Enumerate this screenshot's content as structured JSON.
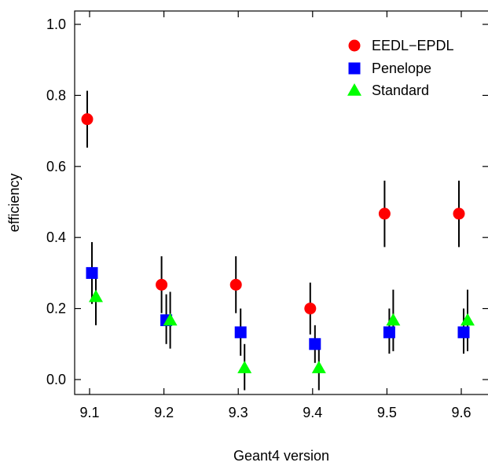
{
  "chart_data": {
    "type": "scatter",
    "title": "",
    "xlabel": "Geant4 version",
    "ylabel": "efficiency",
    "categories": [
      "9.1",
      "9.2",
      "9.3",
      "9.4",
      "9.5",
      "9.6"
    ],
    "ylim": [
      -0.03,
      1.04
    ],
    "yticks": [
      0.0,
      0.2,
      0.4,
      0.6,
      0.8,
      1.0
    ],
    "ytick_labels": [
      "0.0",
      "0.2",
      "0.4",
      "0.6",
      "0.8",
      "1.0"
    ],
    "grid": false,
    "legend_position": "top-right",
    "series": [
      {
        "name": "EEDL−EPDL",
        "marker": "circle",
        "color": "#ff0000",
        "values": [
          0.733,
          0.267,
          0.267,
          0.2,
          0.467,
          0.467
        ],
        "err_low": [
          0.653,
          0.187,
          0.187,
          0.127,
          0.373,
          0.373
        ],
        "err_high": [
          0.813,
          0.347,
          0.347,
          0.273,
          0.56,
          0.56
        ]
      },
      {
        "name": "Penelope",
        "marker": "square",
        "color": "#0000ff",
        "values": [
          0.3,
          0.167,
          0.133,
          0.1,
          0.133,
          0.133
        ],
        "err_low": [
          0.213,
          0.1,
          0.067,
          0.047,
          0.073,
          0.073
        ],
        "err_high": [
          0.387,
          0.24,
          0.2,
          0.153,
          0.2,
          0.2
        ]
      },
      {
        "name": "Standard",
        "marker": "triangle",
        "color": "#00ff00",
        "values": [
          0.233,
          0.167,
          0.033,
          0.033,
          0.167,
          0.167
        ],
        "err_low": [
          0.153,
          0.087,
          -0.03,
          -0.03,
          0.08,
          0.08
        ],
        "err_high": [
          0.313,
          0.247,
          0.1,
          0.1,
          0.253,
          0.253
        ]
      }
    ]
  }
}
